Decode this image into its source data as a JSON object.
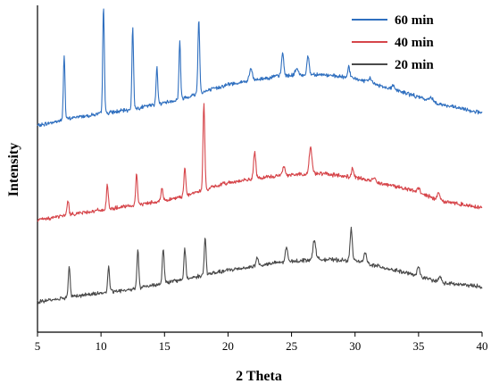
{
  "chart_data": {
    "type": "line",
    "title": "",
    "xlabel": "2 Theta",
    "ylabel": "Intensity",
    "xlim": [
      5,
      40
    ],
    "x_ticks": [
      5,
      10,
      15,
      20,
      25,
      30,
      35,
      40
    ],
    "y_ticks_shown": false,
    "grid": false,
    "legend_position": "top-right",
    "series": [
      {
        "name": "60 min",
        "color": "#2f6fbf",
        "offset": 2.05,
        "baseline": [
          [
            5,
            0
          ],
          [
            8,
            0.1
          ],
          [
            12,
            0.18
          ],
          [
            16,
            0.3
          ],
          [
            20,
            0.48
          ],
          [
            24,
            0.58
          ],
          [
            27,
            0.6
          ],
          [
            30,
            0.55
          ],
          [
            34,
            0.38
          ],
          [
            37,
            0.24
          ],
          [
            40,
            0.15
          ]
        ],
        "peaks": [
          [
            7.1,
            0.75,
            0.09
          ],
          [
            10.2,
            1.25,
            0.09
          ],
          [
            12.5,
            0.95,
            0.09
          ],
          [
            14.4,
            0.45,
            0.09
          ],
          [
            16.2,
            0.68,
            0.09
          ],
          [
            17.7,
            0.85,
            0.1
          ],
          [
            21.8,
            0.14,
            0.15
          ],
          [
            24.3,
            0.26,
            0.12
          ],
          [
            25.4,
            0.08,
            0.15
          ],
          [
            26.3,
            0.22,
            0.12
          ],
          [
            29.5,
            0.13,
            0.12
          ],
          [
            31.2,
            0.06,
            0.15
          ],
          [
            33,
            0.05,
            0.15
          ],
          [
            36,
            0.05,
            0.15
          ]
        ]
      },
      {
        "name": "40 min",
        "color": "#d6454a",
        "offset": 0.95,
        "baseline": [
          [
            5,
            0
          ],
          [
            8,
            0.08
          ],
          [
            12,
            0.16
          ],
          [
            16,
            0.26
          ],
          [
            20,
            0.44
          ],
          [
            24,
            0.52
          ],
          [
            27,
            0.55
          ],
          [
            30,
            0.5
          ],
          [
            34,
            0.37
          ],
          [
            37,
            0.22
          ],
          [
            40,
            0.15
          ]
        ],
        "peaks": [
          [
            7.4,
            0.17,
            0.1
          ],
          [
            10.5,
            0.28,
            0.1
          ],
          [
            12.8,
            0.35,
            0.1
          ],
          [
            14.8,
            0.15,
            0.1
          ],
          [
            16.6,
            0.34,
            0.1
          ],
          [
            18.1,
            1.0,
            0.1
          ],
          [
            22.1,
            0.32,
            0.12
          ],
          [
            24.4,
            0.1,
            0.15
          ],
          [
            26.5,
            0.3,
            0.15
          ],
          [
            29.8,
            0.1,
            0.12
          ],
          [
            31.5,
            0.05,
            0.15
          ],
          [
            35,
            0.06,
            0.15
          ],
          [
            36.6,
            0.08,
            0.15
          ]
        ]
      },
      {
        "name": "20 min",
        "color": "#4a4a4a",
        "offset": 0.0,
        "baseline": [
          [
            5,
            0
          ],
          [
            8,
            0.07
          ],
          [
            12,
            0.14
          ],
          [
            16,
            0.25
          ],
          [
            20,
            0.37
          ],
          [
            24,
            0.46
          ],
          [
            27,
            0.5
          ],
          [
            30,
            0.48
          ],
          [
            34,
            0.34
          ],
          [
            37,
            0.22
          ],
          [
            40,
            0.18
          ]
        ],
        "peaks": [
          [
            7.5,
            0.37,
            0.1
          ],
          [
            10.6,
            0.3,
            0.1
          ],
          [
            12.9,
            0.45,
            0.1
          ],
          [
            14.9,
            0.41,
            0.1
          ],
          [
            16.6,
            0.36,
            0.1
          ],
          [
            18.2,
            0.44,
            0.1
          ],
          [
            22.3,
            0.1,
            0.12
          ],
          [
            24.6,
            0.18,
            0.12
          ],
          [
            26.8,
            0.23,
            0.15
          ],
          [
            29.7,
            0.38,
            0.12
          ],
          [
            30.8,
            0.12,
            0.15
          ],
          [
            35,
            0.1,
            0.15
          ],
          [
            36.7,
            0.06,
            0.15
          ]
        ]
      }
    ]
  }
}
